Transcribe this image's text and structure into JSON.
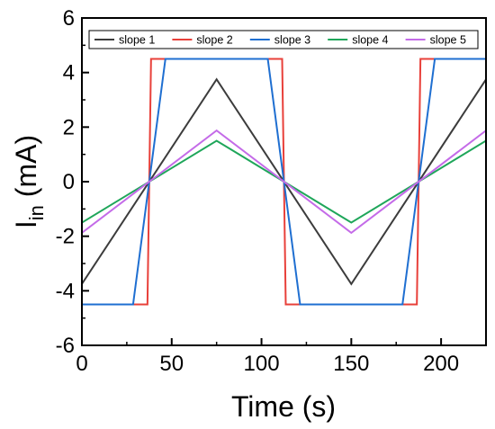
{
  "chart_data": {
    "type": "line",
    "title": "",
    "xlabel": "Time (s)",
    "ylabel": {
      "base": "I",
      "subscript": "in",
      "unit": " (mA)"
    },
    "xlim": [
      0,
      225
    ],
    "ylim": [
      -6,
      6
    ],
    "xticks": [
      0,
      50,
      100,
      150,
      200
    ],
    "yticks": [
      -6,
      -4,
      -2,
      0,
      2,
      4,
      6
    ],
    "xtick_labels": [
      "0",
      "50",
      "100",
      "150",
      "200"
    ],
    "ytick_labels": [
      "-6",
      "-4",
      "-2",
      "0",
      "2",
      "4",
      "6"
    ],
    "grid": false,
    "legend": {
      "placement": "top",
      "orientation": "horizontal"
    },
    "series": [
      {
        "name": "slope 1",
        "color": "#3c3c3c",
        "x": [
          0,
          75,
          150,
          225
        ],
        "y": [
          -3.75,
          3.75,
          -3.75,
          3.75
        ]
      },
      {
        "name": "slope 2",
        "color": "#e8403a",
        "x": [
          0,
          36.5,
          38.5,
          111.5,
          113.5,
          186.5,
          188.5,
          225
        ],
        "y": [
          -4.5,
          -4.5,
          4.5,
          4.5,
          -4.5,
          -4.5,
          4.5,
          4.5
        ]
      },
      {
        "name": "slope 3",
        "color": "#1f6fd1",
        "x": [
          0,
          28.5,
          46.5,
          103.5,
          121.5,
          178.5,
          196.5,
          225
        ],
        "y": [
          -4.5,
          -4.5,
          4.5,
          4.5,
          -4.5,
          -4.5,
          4.5,
          4.5
        ]
      },
      {
        "name": "slope 4",
        "color": "#1fa65a",
        "x": [
          0,
          75,
          150,
          225
        ],
        "y": [
          -1.5,
          1.5,
          -1.5,
          1.5
        ]
      },
      {
        "name": "slope 5",
        "color": "#c46be8",
        "x": [
          0,
          75,
          150,
          225
        ],
        "y": [
          -1.875,
          1.875,
          -1.875,
          1.875
        ]
      }
    ]
  }
}
